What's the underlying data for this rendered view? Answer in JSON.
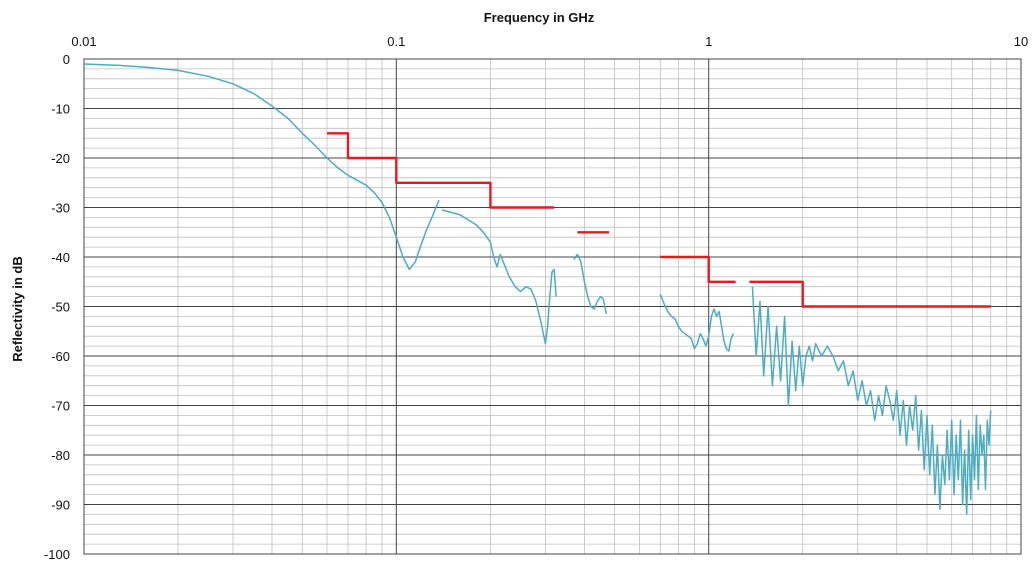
{
  "chart_data": {
    "type": "line",
    "xlabel": "Frequency in GHz",
    "ylabel": "Reflectivity in dB",
    "x_scale": "log",
    "xlim": [
      0.01,
      10
    ],
    "ylim": [
      -100,
      0
    ],
    "x_ticks": [
      "0.01",
      "0.1",
      "1",
      "10"
    ],
    "y_ticks": [
      "0",
      "-10",
      "-20",
      "-30",
      "-40",
      "-50",
      "-60",
      "-70",
      "-80",
      "-90",
      "-100"
    ],
    "grid": true,
    "colors": {
      "measured": "#4bacc6",
      "limit": "#e8191b",
      "grid_major": "#444444",
      "grid_minor": "#bfbfbf"
    },
    "series": [
      {
        "role": "limit",
        "segments": [
          [
            [
              0.06,
              -15
            ],
            [
              0.07,
              -15
            ],
            [
              0.07,
              -20
            ],
            [
              0.1,
              -20
            ],
            [
              0.1,
              -25
            ],
            [
              0.2,
              -25
            ],
            [
              0.2,
              -30
            ],
            [
              0.32,
              -30
            ]
          ],
          [
            [
              0.38,
              -35
            ],
            [
              0.48,
              -35
            ]
          ],
          [
            [
              0.7,
              -40
            ],
            [
              1.0,
              -40
            ],
            [
              1.0,
              -45
            ],
            [
              1.22,
              -45
            ]
          ],
          [
            [
              1.35,
              -45
            ],
            [
              2.0,
              -45
            ],
            [
              2.0,
              -50
            ],
            [
              8.0,
              -50
            ]
          ]
        ]
      },
      {
        "role": "measured",
        "segments": [
          [
            [
              0.01,
              -1
            ],
            [
              0.013,
              -1.3
            ],
            [
              0.016,
              -1.7
            ],
            [
              0.02,
              -2.3
            ],
            [
              0.025,
              -3.5
            ],
            [
              0.03,
              -5
            ],
            [
              0.035,
              -7
            ],
            [
              0.04,
              -9.5
            ],
            [
              0.045,
              -12
            ],
            [
              0.05,
              -15
            ],
            [
              0.055,
              -17.5
            ],
            [
              0.06,
              -20
            ],
            [
              0.065,
              -22
            ],
            [
              0.07,
              -23.5
            ],
            [
              0.075,
              -24.5
            ],
            [
              0.08,
              -25.5
            ],
            [
              0.085,
              -27
            ],
            [
              0.09,
              -29
            ],
            [
              0.095,
              -32
            ],
            [
              0.1,
              -36
            ],
            [
              0.105,
              -40
            ],
            [
              0.11,
              -42.5
            ],
            [
              0.115,
              -41
            ],
            [
              0.12,
              -37.5
            ],
            [
              0.125,
              -34.5
            ],
            [
              0.13,
              -32
            ],
            [
              0.137,
              -28.5
            ]
          ],
          [
            [
              0.14,
              -30.5
            ],
            [
              0.15,
              -31
            ],
            [
              0.16,
              -31.5
            ],
            [
              0.17,
              -32.5
            ],
            [
              0.18,
              -33.5
            ],
            [
              0.19,
              -35
            ],
            [
              0.2,
              -37
            ],
            [
              0.205,
              -40
            ],
            [
              0.21,
              -42
            ],
            [
              0.215,
              -39.5
            ],
            [
              0.22,
              -41
            ],
            [
              0.23,
              -44
            ],
            [
              0.24,
              -46
            ],
            [
              0.25,
              -47
            ],
            [
              0.26,
              -46
            ],
            [
              0.27,
              -46.5
            ],
            [
              0.28,
              -49
            ],
            [
              0.29,
              -53
            ],
            [
              0.3,
              -57.5
            ],
            [
              0.305,
              -54
            ],
            [
              0.31,
              -48
            ],
            [
              0.315,
              -43
            ],
            [
              0.32,
              -42.5
            ],
            [
              0.325,
              -48
            ]
          ],
          [
            [
              0.37,
              -40.5
            ],
            [
              0.38,
              -39.5
            ],
            [
              0.39,
              -41
            ],
            [
              0.4,
              -45
            ],
            [
              0.41,
              -48
            ],
            [
              0.42,
              -50
            ],
            [
              0.43,
              -50.5
            ],
            [
              0.44,
              -49
            ],
            [
              0.45,
              -48
            ],
            [
              0.46,
              -48.5
            ],
            [
              0.47,
              -51.5
            ]
          ],
          [
            [
              0.7,
              -47.5
            ],
            [
              0.72,
              -49.5
            ],
            [
              0.74,
              -51
            ],
            [
              0.76,
              -52
            ],
            [
              0.78,
              -52.5
            ],
            [
              0.8,
              -54
            ],
            [
              0.82,
              -55
            ],
            [
              0.84,
              -55.5
            ],
            [
              0.86,
              -56
            ],
            [
              0.88,
              -56.5
            ],
            [
              0.9,
              -58.5
            ],
            [
              0.92,
              -57.5
            ],
            [
              0.94,
              -55.5
            ],
            [
              0.96,
              -56.5
            ],
            [
              0.98,
              -58
            ],
            [
              1.0,
              -56
            ],
            [
              1.02,
              -52
            ],
            [
              1.04,
              -50.5
            ],
            [
              1.06,
              -52
            ],
            [
              1.08,
              -51
            ],
            [
              1.1,
              -54
            ],
            [
              1.12,
              -57
            ],
            [
              1.14,
              -58.5
            ],
            [
              1.16,
              -59
            ],
            [
              1.18,
              -56.5
            ],
            [
              1.2,
              -55.5
            ]
          ],
          [
            [
              1.38,
              -46
            ],
            [
              1.42,
              -60
            ],
            [
              1.46,
              -49
            ],
            [
              1.5,
              -64
            ],
            [
              1.55,
              -50
            ],
            [
              1.6,
              -66
            ],
            [
              1.65,
              -54
            ],
            [
              1.7,
              -65
            ],
            [
              1.75,
              -52
            ],
            [
              1.8,
              -70
            ],
            [
              1.85,
              -57
            ],
            [
              1.9,
              -67
            ],
            [
              1.95,
              -58
            ],
            [
              2.0,
              -66
            ],
            [
              2.05,
              -60
            ],
            [
              2.1,
              -58
            ],
            [
              2.15,
              -61
            ],
            [
              2.2,
              -57.5
            ],
            [
              2.3,
              -60
            ],
            [
              2.4,
              -58
            ],
            [
              2.5,
              -60
            ],
            [
              2.6,
              -63
            ],
            [
              2.7,
              -61
            ],
            [
              2.8,
              -66
            ],
            [
              2.9,
              -63
            ],
            [
              3.0,
              -69
            ],
            [
              3.1,
              -65
            ],
            [
              3.2,
              -70
            ],
            [
              3.3,
              -67
            ],
            [
              3.4,
              -73
            ],
            [
              3.5,
              -68
            ],
            [
              3.6,
              -72
            ],
            [
              3.7,
              -66
            ],
            [
              3.8,
              -69
            ],
            [
              3.9,
              -73
            ],
            [
              4.0,
              -67
            ],
            [
              4.1,
              -76
            ],
            [
              4.2,
              -69
            ],
            [
              4.3,
              -78
            ],
            [
              4.4,
              -70
            ],
            [
              4.5,
              -75
            ],
            [
              4.6,
              -68
            ],
            [
              4.7,
              -79
            ],
            [
              4.8,
              -71
            ],
            [
              4.9,
              -83
            ],
            [
              5.0,
              -72
            ],
            [
              5.1,
              -84
            ],
            [
              5.2,
              -74
            ],
            [
              5.3,
              -88
            ],
            [
              5.4,
              -78
            ],
            [
              5.5,
              -91
            ],
            [
              5.6,
              -80
            ],
            [
              5.7,
              -86
            ],
            [
              5.8,
              -75
            ],
            [
              5.9,
              -85
            ],
            [
              6.0,
              -73
            ],
            [
              6.1,
              -88
            ],
            [
              6.2,
              -76
            ],
            [
              6.3,
              -85
            ],
            [
              6.4,
              -73
            ],
            [
              6.5,
              -90
            ],
            [
              6.6,
              -79
            ],
            [
              6.7,
              -92
            ],
            [
              6.8,
              -75
            ],
            [
              6.9,
              -89
            ],
            [
              7.0,
              -76
            ],
            [
              7.1,
              -85
            ],
            [
              7.2,
              -72
            ],
            [
              7.3,
              -87
            ],
            [
              7.4,
              -74
            ],
            [
              7.5,
              -80
            ],
            [
              7.6,
              -76
            ],
            [
              7.7,
              -87
            ],
            [
              7.8,
              -73
            ],
            [
              7.9,
              -78
            ],
            [
              8.0,
              -71
            ]
          ]
        ]
      }
    ]
  }
}
